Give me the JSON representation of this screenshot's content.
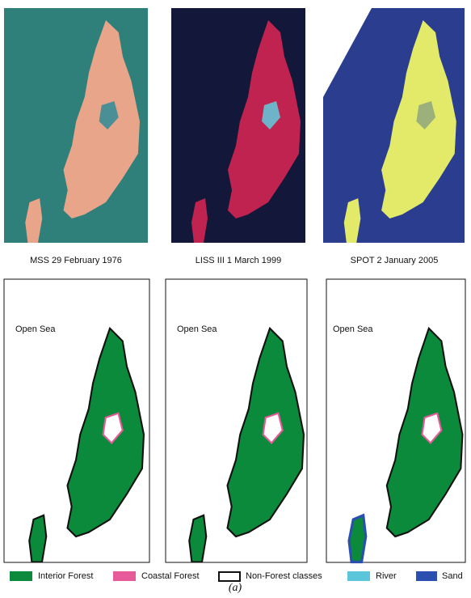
{
  "panels": [
    {
      "caption": "MSS 29 February 1976",
      "map_label": "Open Sea"
    },
    {
      "caption": "LISS III 1 March 1999",
      "map_label": "Open Sea"
    },
    {
      "caption": "SPOT 2 January 2005",
      "map_label": "Open Sea"
    }
  ],
  "legend": [
    "Interior Forest",
    "Coastal Forest",
    "Non-Forest classes",
    "River",
    "Sand"
  ],
  "figure_label": "(a)"
}
